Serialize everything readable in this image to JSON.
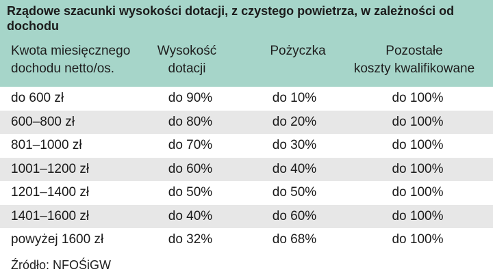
{
  "title": "Rządowe szacunki wysokości dotacji, z czystego powietrza, w zależności od dochodu",
  "columns": {
    "income_line1": "Kwota miesięcznego",
    "income_line2": "dochodu netto/os.",
    "grant_line1": "Wysokość",
    "grant_line2": "dotacji",
    "loan": "Pożyczka",
    "other_line1": "Pozostałe",
    "other_line2": "koszty kwalifikowane"
  },
  "rows": [
    {
      "income": "do 600 zł",
      "grant": "do 90%",
      "loan": "do 10%",
      "other": "do 100%"
    },
    {
      "income": "600–800 zł",
      "grant": "do 80%",
      "loan": "do 20%",
      "other": "do 100%"
    },
    {
      "income": "801–1000 zł",
      "grant": "do 70%",
      "loan": "do 30%",
      "other": "do 100%"
    },
    {
      "income": "1001–1200 zł",
      "grant": "do 60%",
      "loan": "do 40%",
      "other": "do 100%"
    },
    {
      "income": "1201–1400 zł",
      "grant": "do 50%",
      "loan": "do 50%",
      "other": "do 100%"
    },
    {
      "income": "1401–1600 zł",
      "grant": "do 40%",
      "loan": "do 60%",
      "other": "do 100%"
    },
    {
      "income": "powyżej 1600 zł",
      "grant": "do 32%",
      "loan": "do 68%",
      "other": "do 100%"
    }
  ],
  "source": "Źródło: NFOŚiGW",
  "colors": {
    "header": "#a6d5c9",
    "stripe": "#e7e7e7"
  }
}
